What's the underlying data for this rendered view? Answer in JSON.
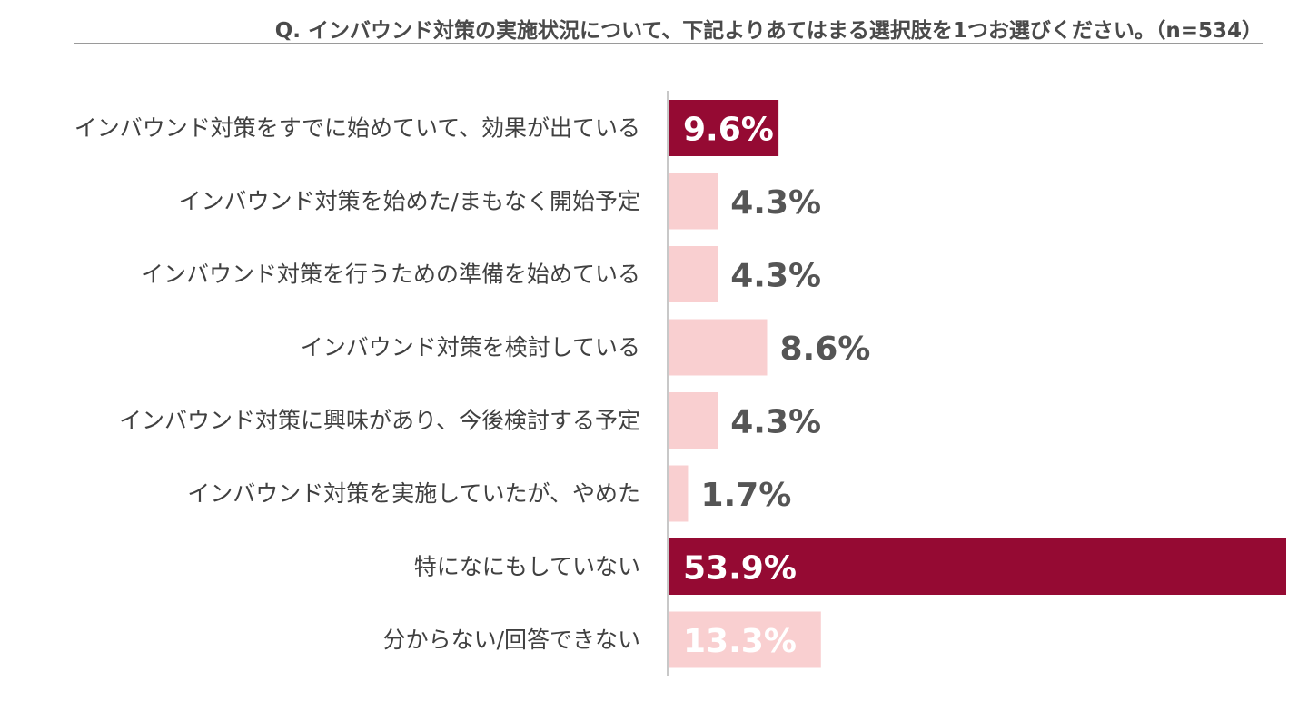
{
  "chart_data": {
    "type": "bar",
    "orientation": "horizontal",
    "title": "Q. インバウンド対策の実施状況について、下記よりあてはまる選択肢を1つお選びください。（n=534）",
    "categories": [
      "インバウンド対策をすでに始めていて、効果が出ている",
      "インバウンド対策を始めた/まもなく開始予定",
      "インバウンド対策を行うための準備を始めている",
      "インバウンド対策を検討している",
      "インバウンド対策に興味があり、今後検討する予定",
      "インバウンド対策を実施していたが、やめた",
      "特になにもしていない",
      "分からない/回答できない"
    ],
    "values": [
      9.6,
      4.3,
      4.3,
      8.6,
      4.3,
      1.7,
      53.9,
      13.3
    ],
    "value_labels": [
      "9.6%",
      "4.3%",
      "4.3%",
      "8.6%",
      "4.3%",
      "1.7%",
      "53.9%",
      "13.3%"
    ],
    "xlim": [
      0,
      53.9
    ],
    "colors": {
      "highlight": "#950a33",
      "normal": "#f9cfd0",
      "label_dark": "#555555",
      "label_light": "#ffffff",
      "axis": "#c8c8c8"
    },
    "highlighted": [
      true,
      false,
      false,
      false,
      false,
      false,
      true,
      false
    ],
    "label_inside": [
      true,
      false,
      false,
      false,
      false,
      false,
      true,
      true
    ],
    "grid": false,
    "legend": "none"
  }
}
